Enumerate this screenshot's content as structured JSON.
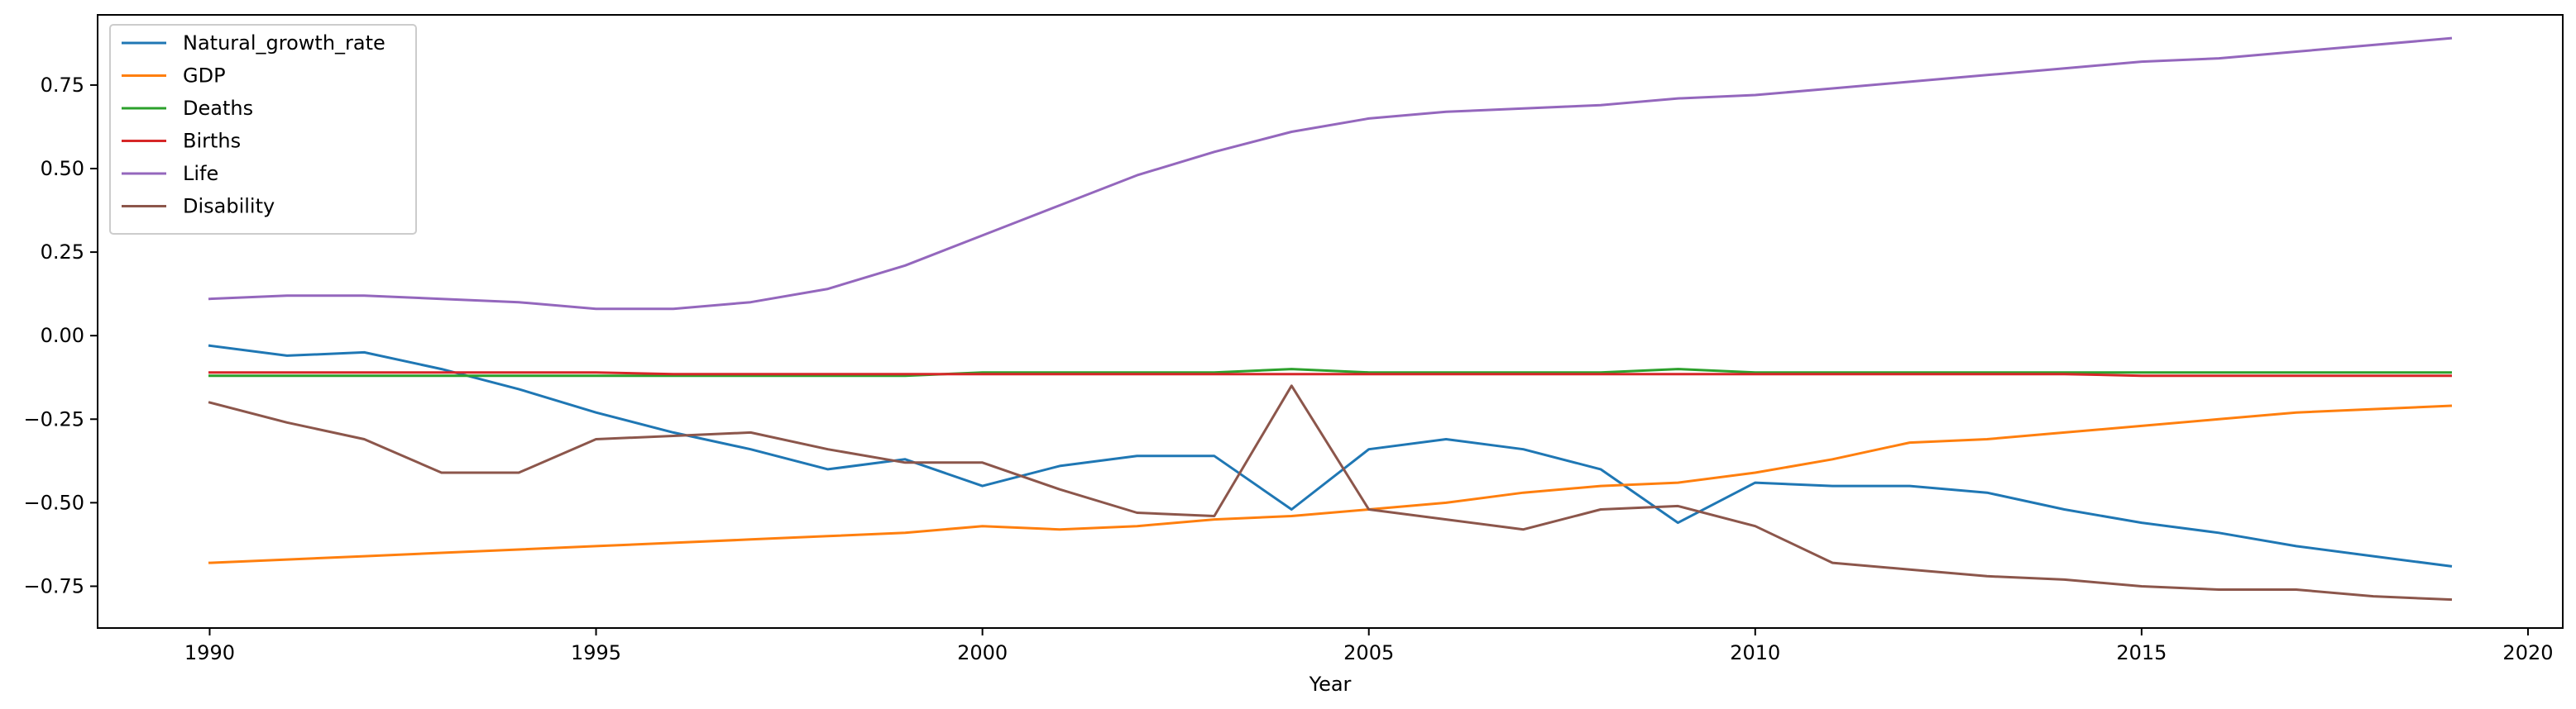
{
  "chart_data": {
    "type": "line",
    "title": "",
    "xlabel": "Year",
    "ylabel": "",
    "xlim": [
      1988.55,
      2020.45
    ],
    "ylim": [
      -0.875,
      0.96
    ],
    "xticks": [
      1990,
      1995,
      2000,
      2005,
      2010,
      2015,
      2020
    ],
    "yticks": [
      -0.75,
      -0.5,
      -0.25,
      0.0,
      0.25,
      0.5,
      0.75
    ],
    "ytick_labels": [
      "−0.75",
      "−0.50",
      "−0.25",
      "0.00",
      "0.25",
      "0.50",
      "0.75"
    ],
    "grid": false,
    "legend_position": "top-left",
    "x": [
      1990,
      1991,
      1992,
      1993,
      1994,
      1995,
      1996,
      1997,
      1998,
      1999,
      2000,
      2001,
      2002,
      2003,
      2004,
      2005,
      2006,
      2007,
      2008,
      2009,
      2010,
      2011,
      2012,
      2013,
      2014,
      2015,
      2016,
      2017,
      2018,
      2019
    ],
    "series": [
      {
        "name": "Natural_growth_rate",
        "color": "#1f77b4",
        "values": [
          -0.03,
          -0.06,
          -0.05,
          -0.1,
          -0.16,
          -0.23,
          -0.29,
          -0.34,
          -0.4,
          -0.37,
          -0.45,
          -0.39,
          -0.36,
          -0.36,
          -0.52,
          -0.34,
          -0.31,
          -0.34,
          -0.4,
          -0.56,
          -0.44,
          -0.45,
          -0.45,
          -0.47,
          -0.52,
          -0.56,
          -0.59,
          -0.63,
          -0.66,
          -0.69
        ]
      },
      {
        "name": "GDP",
        "color": "#ff7f0e",
        "values": [
          -0.68,
          -0.67,
          -0.66,
          -0.65,
          -0.64,
          -0.63,
          -0.62,
          -0.61,
          -0.6,
          -0.59,
          -0.57,
          -0.58,
          -0.57,
          -0.55,
          -0.54,
          -0.52,
          -0.5,
          -0.47,
          -0.45,
          -0.44,
          -0.41,
          -0.37,
          -0.32,
          -0.31,
          -0.29,
          -0.27,
          -0.25,
          -0.23,
          -0.22,
          -0.21
        ]
      },
      {
        "name": "Deaths",
        "color": "#2ca02c",
        "values": [
          -0.12,
          -0.12,
          -0.12,
          -0.12,
          -0.12,
          -0.12,
          -0.12,
          -0.12,
          -0.12,
          -0.12,
          -0.11,
          -0.11,
          -0.11,
          -0.11,
          -0.1,
          -0.11,
          -0.11,
          -0.11,
          -0.11,
          -0.1,
          -0.11,
          -0.11,
          -0.11,
          -0.11,
          -0.11,
          -0.11,
          -0.11,
          -0.11,
          -0.11,
          -0.11
        ]
      },
      {
        "name": "Births",
        "color": "#d62728",
        "values": [
          -0.11,
          -0.11,
          -0.11,
          -0.11,
          -0.11,
          -0.11,
          -0.115,
          -0.115,
          -0.115,
          -0.115,
          -0.115,
          -0.115,
          -0.115,
          -0.115,
          -0.115,
          -0.115,
          -0.115,
          -0.115,
          -0.115,
          -0.115,
          -0.115,
          -0.115,
          -0.115,
          -0.115,
          -0.115,
          -0.12,
          -0.12,
          -0.12,
          -0.12,
          -0.12
        ]
      },
      {
        "name": "Life",
        "color": "#9467bd",
        "values": [
          0.11,
          0.12,
          0.12,
          0.11,
          0.1,
          0.08,
          0.08,
          0.1,
          0.14,
          0.21,
          0.3,
          0.39,
          0.48,
          0.55,
          0.61,
          0.65,
          0.67,
          0.68,
          0.69,
          0.71,
          0.72,
          0.74,
          0.76,
          0.78,
          0.8,
          0.82,
          0.83,
          0.85,
          0.87,
          0.89
        ]
      },
      {
        "name": "Disability",
        "color": "#8c564b",
        "values": [
          -0.2,
          -0.26,
          -0.31,
          -0.41,
          -0.41,
          -0.31,
          -0.3,
          -0.29,
          -0.34,
          -0.38,
          -0.38,
          -0.46,
          -0.53,
          -0.54,
          -0.15,
          -0.52,
          -0.55,
          -0.58,
          -0.52,
          -0.51,
          -0.57,
          -0.68,
          -0.7,
          -0.72,
          -0.73,
          -0.75,
          -0.76,
          -0.76,
          -0.78,
          -0.79
        ]
      }
    ]
  }
}
